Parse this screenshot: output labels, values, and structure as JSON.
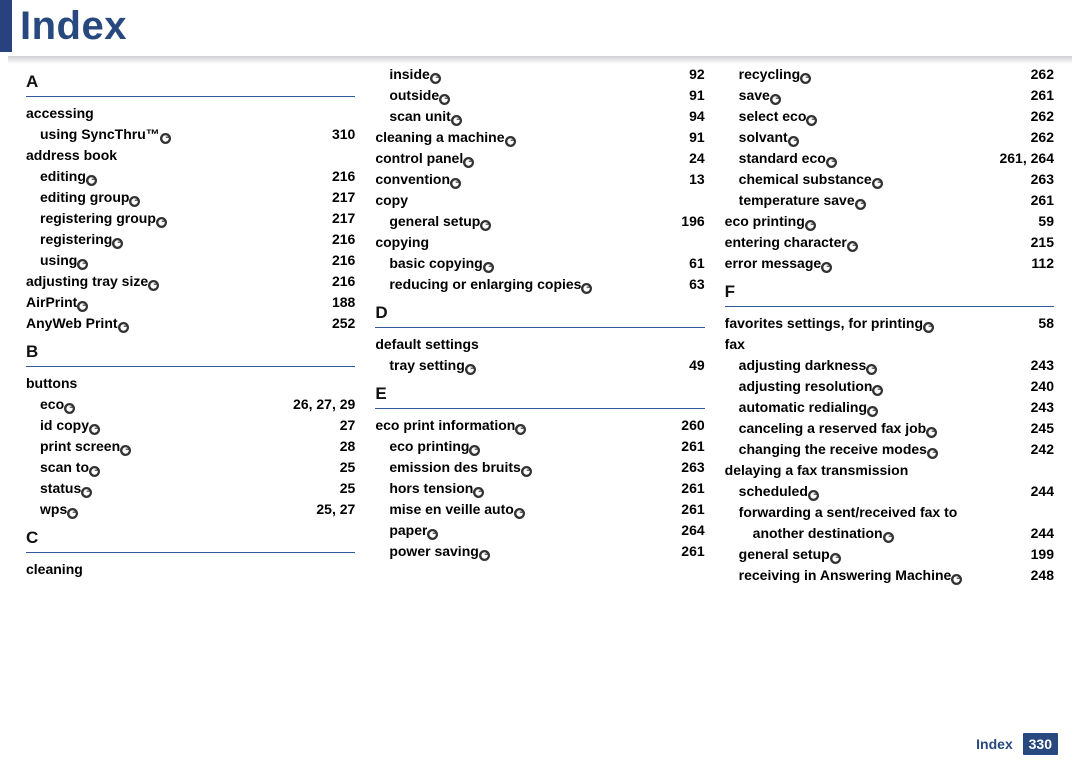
{
  "title": "Index",
  "footer": {
    "label": "Index",
    "page": "330"
  },
  "columns": [
    {
      "sections": [
        {
          "letter": "A",
          "entries": [
            {
              "term": "accessing",
              "indent": 0,
              "page": ""
            },
            {
              "term": "using SyncThru™",
              "indent": 1,
              "page": "310"
            },
            {
              "term": "address book",
              "indent": 0,
              "page": ""
            },
            {
              "term": "editing",
              "indent": 1,
              "page": "216"
            },
            {
              "term": "editing group",
              "indent": 1,
              "page": "217"
            },
            {
              "term": "registering group",
              "indent": 1,
              "page": "217"
            },
            {
              "term": "registering",
              "indent": 1,
              "page": "216"
            },
            {
              "term": "using",
              "indent": 1,
              "page": "216"
            },
            {
              "term": "adjusting tray size",
              "indent": 0,
              "page": "216"
            },
            {
              "term": "AirPrint",
              "indent": 0,
              "page": "188"
            },
            {
              "term": "AnyWeb Print",
              "indent": 0,
              "page": "252"
            }
          ]
        },
        {
          "letter": "B",
          "entries": [
            {
              "term": "buttons",
              "indent": 0,
              "page": ""
            },
            {
              "term": "eco",
              "indent": 1,
              "page": "26, 27, 29"
            },
            {
              "term": "id copy",
              "indent": 1,
              "page": "27"
            },
            {
              "term": "print screen",
              "indent": 1,
              "page": "28"
            },
            {
              "term": "scan to",
              "indent": 1,
              "page": "25"
            },
            {
              "term": "status",
              "indent": 1,
              "page": "25"
            },
            {
              "term": "wps",
              "indent": 1,
              "page": "25, 27"
            }
          ]
        },
        {
          "letter": "C",
          "entries": [
            {
              "term": "cleaning",
              "indent": 0,
              "page": ""
            }
          ]
        }
      ]
    },
    {
      "sections": [
        {
          "entries": [
            {
              "term": "inside",
              "indent": 1,
              "page": "92"
            },
            {
              "term": "outside",
              "indent": 1,
              "page": "91"
            },
            {
              "term": "scan unit",
              "indent": 1,
              "page": "94"
            },
            {
              "term": "cleaning a machine",
              "indent": 0,
              "page": "91"
            },
            {
              "term": "control panel",
              "indent": 0,
              "page": "24"
            },
            {
              "term": "convention",
              "indent": 0,
              "page": "13"
            },
            {
              "term": "copy",
              "indent": 0,
              "page": ""
            },
            {
              "term": "general setup",
              "indent": 1,
              "page": "196"
            },
            {
              "term": "copying",
              "indent": 0,
              "page": ""
            },
            {
              "term": "basic copying",
              "indent": 1,
              "page": "61"
            },
            {
              "term": "reducing or enlarging copies",
              "indent": 1,
              "page": "63"
            }
          ]
        },
        {
          "letter": "D",
          "entries": [
            {
              "term": "default settings",
              "indent": 0,
              "page": ""
            },
            {
              "term": "tray setting",
              "indent": 1,
              "page": "49"
            }
          ]
        },
        {
          "letter": "E",
          "entries": [
            {
              "term": "eco print information",
              "indent": 0,
              "page": "260"
            },
            {
              "term": "eco printing",
              "indent": 1,
              "page": "261"
            },
            {
              "term": "emission des bruits",
              "indent": 1,
              "page": "263"
            },
            {
              "term": "hors tension",
              "indent": 1,
              "page": "261"
            },
            {
              "term": "mise en veille auto",
              "indent": 1,
              "page": "261"
            },
            {
              "term": "paper",
              "indent": 1,
              "page": "264"
            },
            {
              "term": "power saving",
              "indent": 1,
              "page": "261"
            }
          ]
        }
      ]
    },
    {
      "sections": [
        {
          "entries": [
            {
              "term": "recycling",
              "indent": 1,
              "page": "262"
            },
            {
              "term": "save",
              "indent": 1,
              "page": "261"
            },
            {
              "term": "select eco",
              "indent": 1,
              "page": "262"
            },
            {
              "term": "solvant",
              "indent": 1,
              "page": "262"
            },
            {
              "term": "standard eco",
              "indent": 1,
              "page": "261, 264"
            },
            {
              "term": "chemical substance",
              "indent": 1,
              "page": "263"
            },
            {
              "term": "temperature save",
              "indent": 1,
              "page": "261"
            },
            {
              "term": "eco printing",
              "indent": 0,
              "page": "59"
            },
            {
              "term": "entering character",
              "indent": 0,
              "page": "215"
            },
            {
              "term": "error message",
              "indent": 0,
              "page": "112"
            }
          ]
        },
        {
          "letter": "F",
          "entries": [
            {
              "term": "favorites settings, for printing",
              "indent": 0,
              "page": "58"
            },
            {
              "term": "fax",
              "indent": 0,
              "page": ""
            },
            {
              "term": "adjusting darkness",
              "indent": 1,
              "page": "243"
            },
            {
              "term": "adjusting resolution",
              "indent": 1,
              "page": "240"
            },
            {
              "term": "automatic redialing",
              "indent": 1,
              "page": "243"
            },
            {
              "term": "canceling a reserved fax job",
              "indent": 1,
              "page": "245"
            },
            {
              "term": "changing the receive modes",
              "indent": 1,
              "page": "242"
            },
            {
              "term": "delaying a fax transmission",
              "indent": 0,
              "page": ""
            },
            {
              "term": "scheduled",
              "indent": 1,
              "page": "244"
            },
            {
              "term": "forwarding a sent/received fax to",
              "indent": 1,
              "page": ""
            },
            {
              "term": "another destination",
              "indent": 2,
              "page": "244"
            },
            {
              "term": "general setup",
              "indent": 1,
              "page": "199"
            },
            {
              "term": "receiving in Answering Machine",
              "indent": 1,
              "page": "248"
            }
          ]
        }
      ]
    }
  ]
}
